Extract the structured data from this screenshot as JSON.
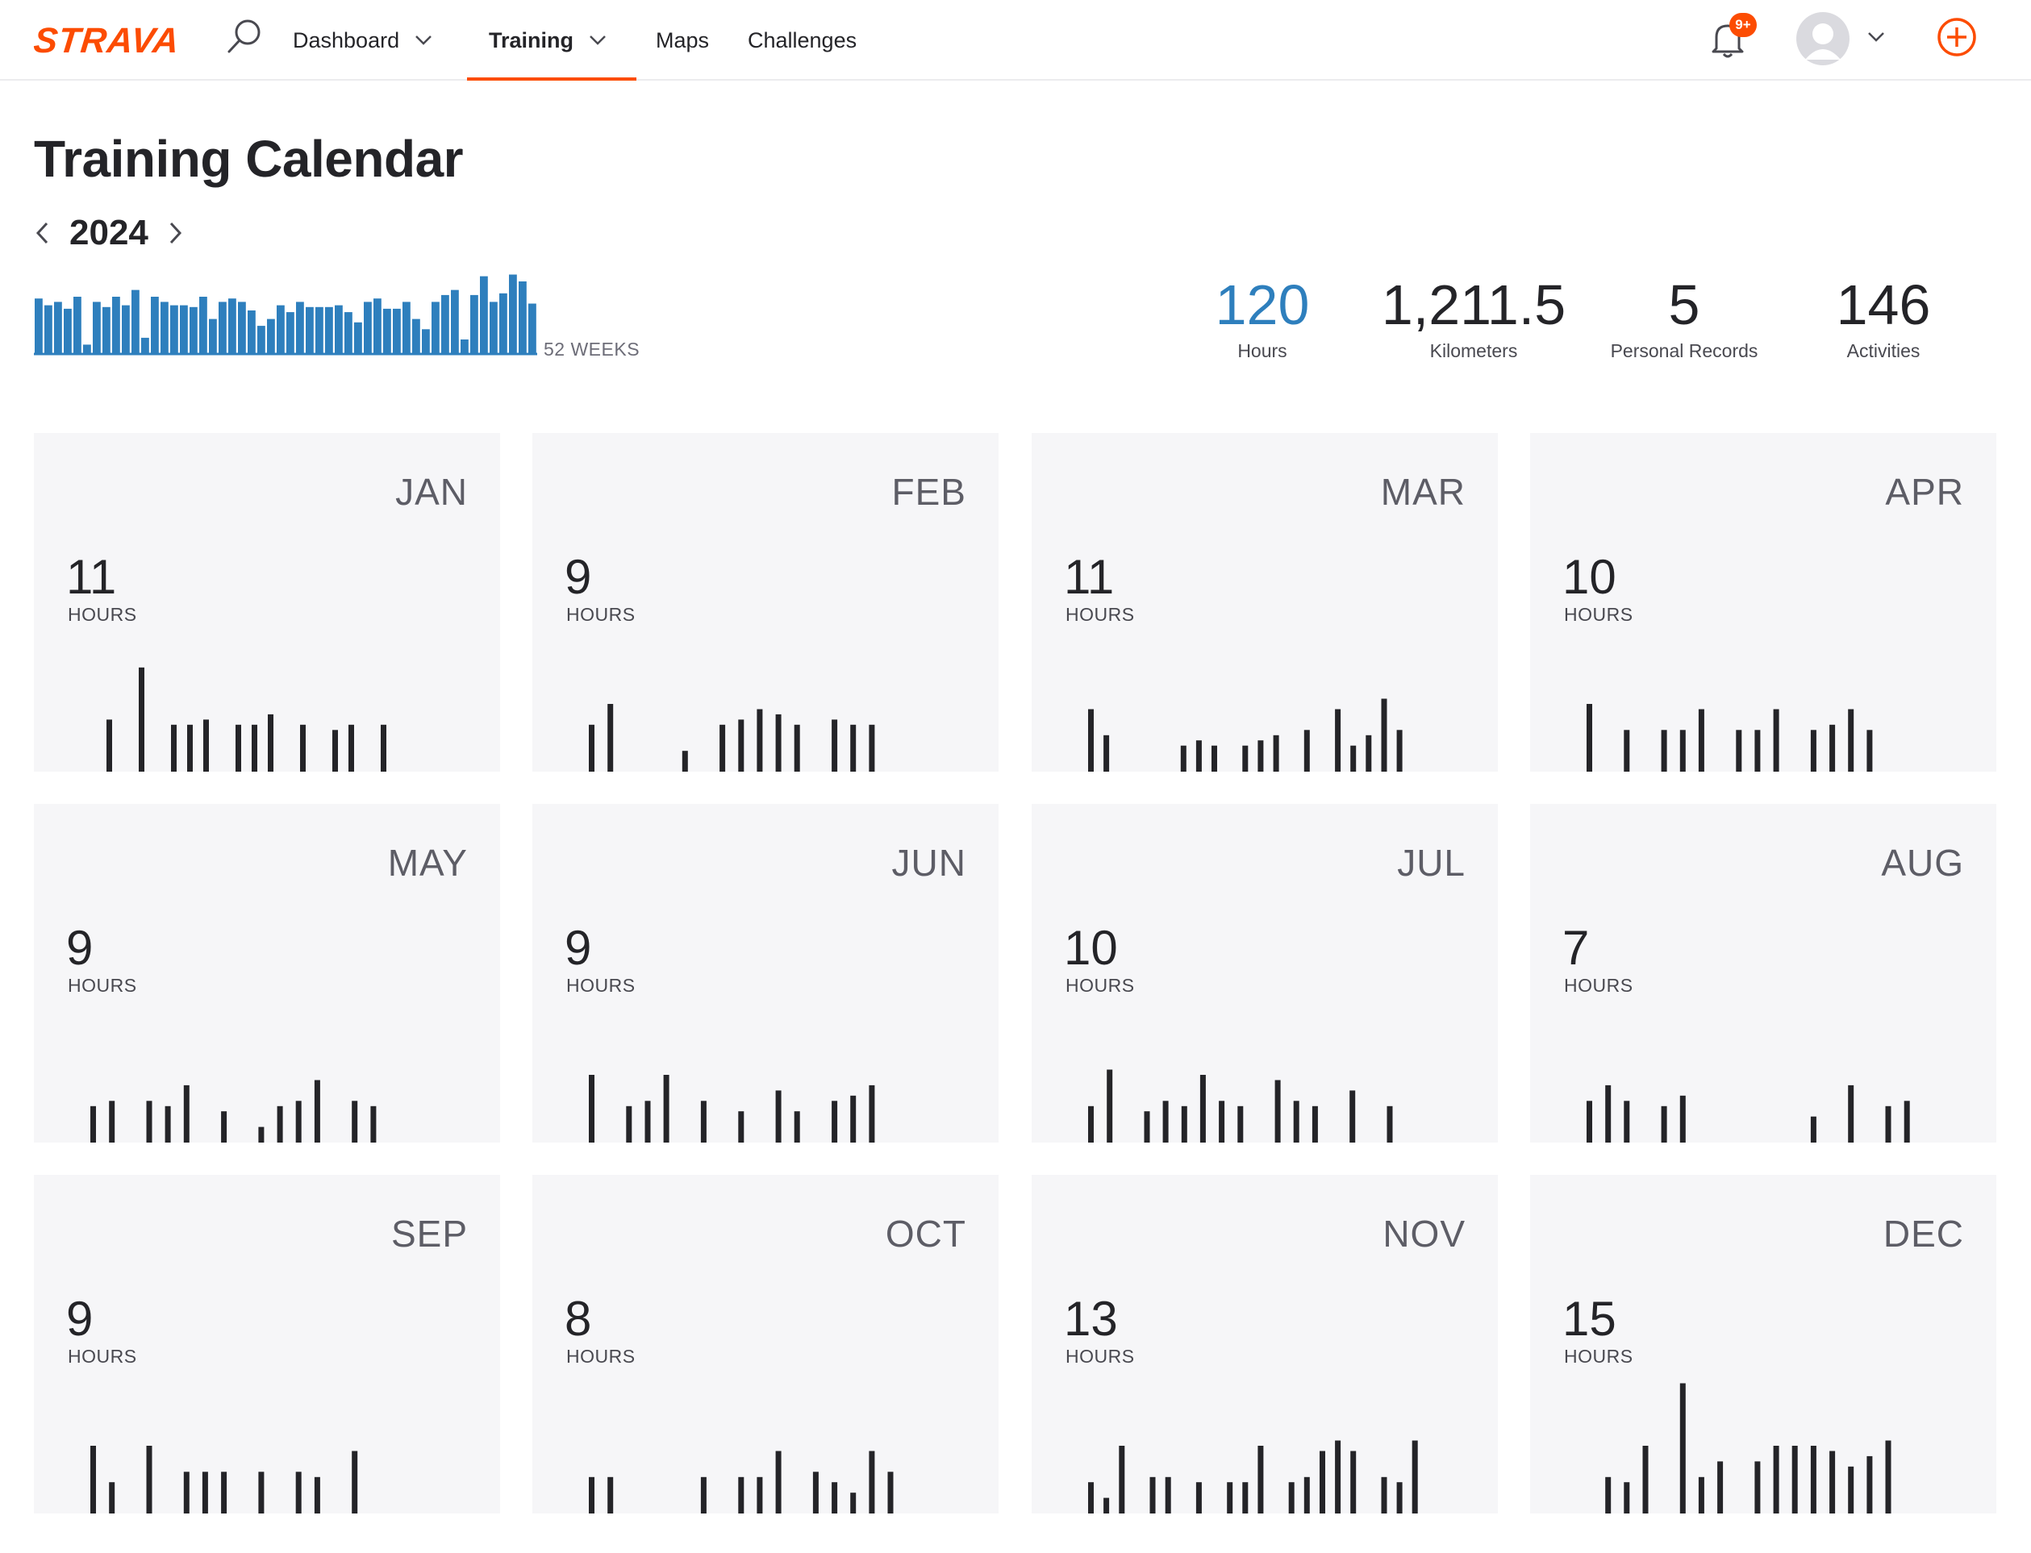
{
  "nav": {
    "logo": "STRAVA",
    "items": [
      {
        "label": "Dashboard"
      },
      {
        "label": "Training"
      },
      {
        "label": "Maps"
      },
      {
        "label": "Challenges"
      }
    ],
    "notification_badge": "9+",
    "icons": [
      "search-icon",
      "chevron-down-icon",
      "bell-icon",
      "avatar-icon",
      "plus-circle-icon"
    ],
    "accent_color": "#fc4c02"
  },
  "page": {
    "title": "Training Calendar",
    "year": "2024"
  },
  "summary": {
    "weeks_label": "52 WEEKS",
    "bar_color": "#2e7fbd",
    "stats": [
      {
        "value": "120",
        "label": "Hours"
      },
      {
        "value": "1,211.5",
        "label": "Kilometers"
      },
      {
        "value": "5",
        "label": "Personal Records"
      },
      {
        "value": "146",
        "label": "Activities"
      }
    ]
  },
  "chart_data": [
    {
      "type": "bar",
      "title": "",
      "series": [
        {
          "values": [
            3.2,
            2.8,
            3.0,
            2.6,
            3.3,
            0.5,
            3.0,
            2.7,
            3.3,
            2.8,
            3.7,
            0.9,
            3.3,
            3.0,
            2.8,
            2.8,
            2.7,
            3.3,
            2.0,
            3.0,
            3.2,
            3.0,
            2.5,
            1.6,
            2.0,
            2.8,
            2.4,
            3.0,
            2.7,
            2.7,
            2.7,
            2.8,
            2.4,
            1.8,
            3.0,
            3.2,
            2.6,
            2.6,
            3.0,
            2.0,
            1.4,
            3.0,
            3.4,
            3.7,
            0.8,
            3.4,
            4.5,
            3.0,
            3.5,
            4.6,
            4.2,
            2.9
          ]
        }
      ],
      "ylabel": "",
      "xlabel": ""
    },
    {
      "type": "bar",
      "month": "JAN",
      "hours": "11",
      "hours_label": "HOURS",
      "values": [
        0,
        1.0,
        0,
        2.0,
        0,
        0.9,
        0.9,
        1.0,
        0,
        0.9,
        0.9,
        1.1,
        0,
        0.9,
        0,
        0.8,
        0.9,
        0,
        0.9,
        0,
        0,
        0,
        0
      ]
    },
    {
      "type": "bar",
      "month": "FEB",
      "hours": "9",
      "hours_label": "HOURS",
      "values": [
        0.9,
        1.3,
        0,
        0,
        0,
        0.4,
        0,
        0.9,
        1.0,
        1.2,
        1.1,
        0.9,
        0,
        1.0,
        0.9,
        0.9,
        0,
        0,
        0,
        0
      ]
    },
    {
      "type": "bar",
      "month": "MAR",
      "hours": "11",
      "hours_label": "HOURS",
      "values": [
        1.2,
        0.7,
        0,
        0,
        0,
        0,
        0.5,
        0.6,
        0.5,
        0,
        0.5,
        0.6,
        0.7,
        0,
        0.8,
        0,
        1.2,
        0.5,
        0.7,
        1.4,
        0.8,
        0,
        0,
        0
      ]
    },
    {
      "type": "bar",
      "month": "APR",
      "hours": "10",
      "hours_label": "HOURS",
      "values": [
        1.3,
        0,
        0.8,
        0,
        0.8,
        0.8,
        1.2,
        0,
        0.8,
        0.8,
        1.2,
        0,
        0.8,
        0.9,
        1.2,
        0.8,
        0,
        0,
        0,
        0
      ]
    },
    {
      "type": "bar",
      "month": "MAY",
      "hours": "9",
      "hours_label": "HOURS",
      "values": [
        0.7,
        0.8,
        0,
        0.8,
        0.7,
        1.1,
        0,
        0.6,
        0,
        0.3,
        0.7,
        0.8,
        1.2,
        0,
        0.8,
        0.7,
        0,
        0,
        0,
        0
      ]
    },
    {
      "type": "bar",
      "month": "JUN",
      "hours": "9",
      "hours_label": "HOURS",
      "values": [
        1.3,
        0,
        0.7,
        0.8,
        1.3,
        0,
        0.8,
        0,
        0.6,
        0,
        1.0,
        0.6,
        0,
        0.8,
        0.9,
        1.1,
        0,
        0,
        0,
        0
      ]
    },
    {
      "type": "bar",
      "month": "JUL",
      "hours": "10",
      "hours_label": "HOURS",
      "values": [
        0.7,
        1.4,
        0,
        0.6,
        0.8,
        0.7,
        1.3,
        0.8,
        0.7,
        0,
        1.2,
        0.8,
        0.7,
        0,
        1.0,
        0,
        0.7,
        0,
        0,
        0
      ]
    },
    {
      "type": "bar",
      "month": "AUG",
      "hours": "7",
      "hours_label": "HOURS",
      "values": [
        0.8,
        1.1,
        0.8,
        0,
        0.7,
        0.9,
        0,
        0,
        0,
        0,
        0,
        0,
        0.5,
        0,
        1.1,
        0,
        0.7,
        0.8,
        0,
        0
      ]
    },
    {
      "type": "bar",
      "month": "SEP",
      "hours": "9",
      "hours_label": "HOURS",
      "values": [
        1.3,
        0.6,
        0,
        1.3,
        0,
        0.8,
        0.8,
        0.8,
        0,
        0.8,
        0,
        0.8,
        0.7,
        0,
        1.2,
        0,
        0,
        0,
        0,
        0
      ]
    },
    {
      "type": "bar",
      "month": "OCT",
      "hours": "8",
      "hours_label": "HOURS",
      "values": [
        0.7,
        0.7,
        0,
        0,
        0,
        0,
        0.7,
        0,
        0.7,
        0.7,
        1.2,
        0,
        0.8,
        0.6,
        0.4,
        1.2,
        0.8,
        0,
        0,
        0
      ]
    },
    {
      "type": "bar",
      "month": "NOV",
      "hours": "13",
      "hours_label": "HOURS",
      "values": [
        0.6,
        0.3,
        1.3,
        0,
        0.7,
        0.7,
        0,
        0.6,
        0,
        0.6,
        0.6,
        1.3,
        0,
        0.6,
        0.7,
        1.2,
        1.4,
        1.2,
        0,
        0.7,
        0.6,
        1.4,
        0,
        0
      ]
    },
    {
      "type": "bar",
      "month": "DEC",
      "hours": "15",
      "hours_label": "HOURS",
      "values": [
        0,
        0.7,
        0.6,
        1.3,
        0,
        2.5,
        0.7,
        1.0,
        0,
        1.0,
        1.3,
        1.3,
        1.3,
        1.2,
        0.9,
        1.1,
        1.4,
        0,
        0,
        0
      ]
    }
  ]
}
